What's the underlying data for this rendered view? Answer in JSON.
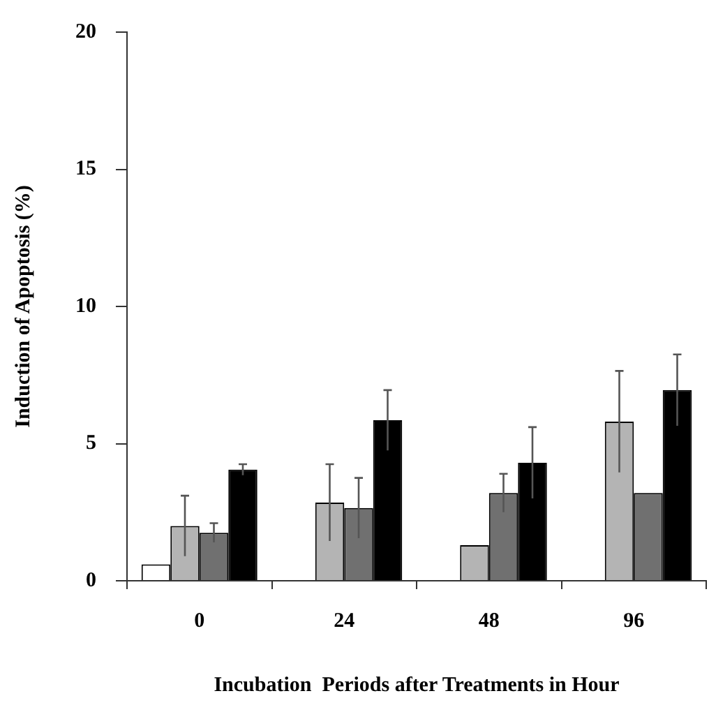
{
  "chart_data": {
    "type": "bar",
    "xlabel": "Incubation  Periods after Treatments in Hour",
    "ylabel": "Induction of Apoptosis (%)",
    "categories": [
      "0",
      "24",
      "48",
      "96"
    ],
    "series": [
      {
        "color": "#ffffff",
        "values": [
          0.6,
          null,
          null,
          null
        ]
      },
      {
        "color": "#b4b4b4",
        "values": [
          2.0,
          2.85,
          1.3,
          5.8
        ],
        "errors": [
          1.1,
          1.4,
          null,
          1.85
        ]
      },
      {
        "color": "#707070",
        "values": [
          1.75,
          2.65,
          3.2,
          3.2
        ],
        "errors": [
          0.35,
          1.1,
          0.7,
          null
        ]
      },
      {
        "color": "#000000",
        "values": [
          4.05,
          5.85,
          4.3,
          6.95
        ],
        "errors": [
          0.2,
          1.1,
          1.3,
          1.3
        ]
      }
    ],
    "ylim": [
      0,
      20
    ],
    "yticks": [
      0,
      5,
      10,
      15,
      20
    ],
    "grid": false,
    "legend": false
  }
}
